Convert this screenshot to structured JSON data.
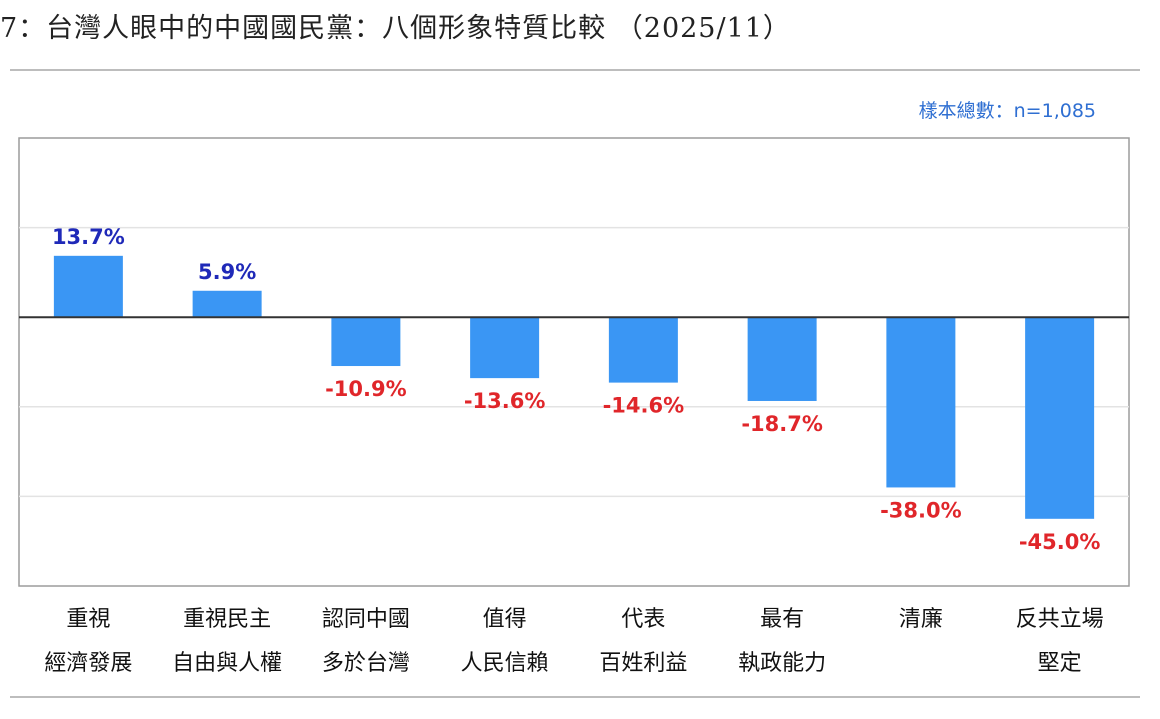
{
  "header": {
    "title": "7：台灣人眼中的中國國民黨：八個形象特質比較 （2025/11）",
    "sample_size": "樣本總數：n=1,085"
  },
  "colors": {
    "bar": "#3a96f4",
    "positive_label": "#1f29b8",
    "negative_label": "#e0262a",
    "axis": "#333333",
    "grid": "#e3e3e3",
    "frame": "#9c9c9c"
  },
  "chart_data": {
    "type": "bar",
    "categories": [
      [
        "重視",
        "經濟發展"
      ],
      [
        "重視民主",
        "自由與人權"
      ],
      [
        "認同中國",
        "多於台灣"
      ],
      [
        "值得",
        "人民信賴"
      ],
      [
        "代表",
        "百姓利益"
      ],
      [
        "最有",
        "執政能力"
      ],
      [
        "清廉"
      ],
      [
        "反共立場",
        "堅定"
      ]
    ],
    "values": [
      13.7,
      5.9,
      -10.9,
      -13.6,
      -14.6,
      -18.7,
      -38.0,
      -45.0
    ],
    "value_labels": [
      "13.7%",
      "5.9%",
      "-10.9%",
      "-13.6%",
      "-14.6%",
      "-18.7%",
      "-38.0%",
      "-45.0%"
    ],
    "ylim": [
      -60,
      40
    ],
    "gridlines": [
      20,
      -20,
      -40
    ],
    "grid": true,
    "legend": "none"
  }
}
